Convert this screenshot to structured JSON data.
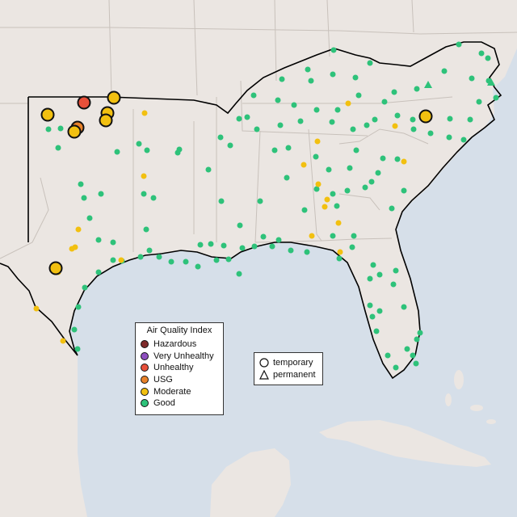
{
  "legend": {
    "title": "Air Quality Index",
    "categories": [
      {
        "label": "Hazardous",
        "color": "#7e2a2a"
      },
      {
        "label": "Very Unhealthy",
        "color": "#8e4fbf"
      },
      {
        "label": "Unhealthy",
        "color": "#e8503a"
      },
      {
        "label": "USG",
        "color": "#e8822a"
      },
      {
        "label": "Moderate",
        "color": "#f2c010"
      },
      {
        "label": "Good",
        "color": "#2ec27a"
      }
    ],
    "site_types": [
      {
        "label": "temporary",
        "icon": "circle-outline-icon"
      },
      {
        "label": "permanent",
        "icon": "triangle-outline-icon"
      }
    ]
  },
  "colors": {
    "water": "#d6dfe9",
    "land": "#ebe6e2",
    "state_border": "#c8c1bb",
    "region_border": "#000000"
  }
}
